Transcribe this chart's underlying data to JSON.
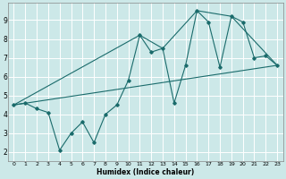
{
  "xlabel": "Humidex (Indice chaleur)",
  "background_color": "#cce8e8",
  "grid_color": "#ffffff",
  "line_color": "#1a6b6b",
  "xlim": [
    -0.5,
    23.5
  ],
  "ylim": [
    1.5,
    9.9
  ],
  "yticks": [
    2,
    3,
    4,
    5,
    6,
    7,
    8,
    9
  ],
  "xticks": [
    0,
    1,
    2,
    3,
    4,
    5,
    6,
    7,
    8,
    9,
    10,
    11,
    12,
    13,
    14,
    15,
    16,
    17,
    18,
    19,
    20,
    21,
    22,
    23
  ],
  "line1_x": [
    0,
    1,
    2,
    3,
    4,
    5,
    6,
    7,
    8,
    9,
    10,
    11,
    12,
    13,
    14,
    15,
    16,
    17,
    18,
    19,
    20,
    21,
    22,
    23
  ],
  "line1_y": [
    4.5,
    4.6,
    4.3,
    4.1,
    2.1,
    3.0,
    3.6,
    2.5,
    4.0,
    4.5,
    5.8,
    8.2,
    7.3,
    7.5,
    4.6,
    6.6,
    9.5,
    8.9,
    6.5,
    9.2,
    8.9,
    7.0,
    7.1,
    6.6
  ],
  "line2_x": [
    0,
    11,
    13,
    16,
    19,
    23
  ],
  "line2_y": [
    4.5,
    8.2,
    7.5,
    9.5,
    9.2,
    6.6
  ],
  "line3_x": [
    0,
    23
  ],
  "line3_y": [
    4.5,
    6.6
  ]
}
